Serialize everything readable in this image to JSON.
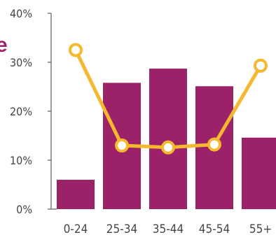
{
  "chart_data": {
    "type": "bar",
    "categories": [
      "0-24",
      "25-34",
      "35-44",
      "45-54",
      "55+"
    ],
    "ylim": [
      0,
      40
    ],
    "yticks": [
      0,
      10,
      20,
      30,
      40
    ],
    "ytick_labels": [
      "0%",
      "10%",
      "20%",
      "30%",
      "40%"
    ],
    "grid": false,
    "series": [
      {
        "type": "bar",
        "values": [
          6,
          25.8,
          28.7,
          25.1,
          14.6
        ],
        "color": "#9b2168"
      },
      {
        "type": "line",
        "values": [
          32.5,
          13,
          12.6,
          13.2,
          29.3
        ],
        "color": "#f5b82e",
        "marker": "open-circle"
      }
    ]
  },
  "clipped_text": {
    "glyph": "e",
    "color": "#9b2168"
  }
}
